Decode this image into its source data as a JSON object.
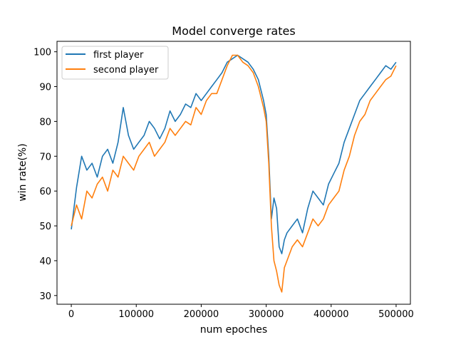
{
  "chart_data": {
    "type": "line",
    "title": "Model converge rates",
    "xlabel": "num epoches",
    "ylabel": "win rate(%)",
    "xlim": [
      -22000,
      522000
    ],
    "ylim": [
      27.5,
      103
    ],
    "xticks": [
      0,
      100000,
      200000,
      300000,
      400000,
      500000
    ],
    "yticks": [
      30,
      40,
      50,
      60,
      70,
      80,
      90,
      100
    ],
    "grid": false,
    "legend_position": "top-left",
    "series": [
      {
        "name": "first player",
        "color": "#1f77b4",
        "x": [
          0,
          8000,
          16000,
          24000,
          32000,
          40000,
          48000,
          56000,
          64000,
          72000,
          80000,
          88000,
          96000,
          104000,
          112000,
          120000,
          128000,
          136000,
          144000,
          152000,
          160000,
          168000,
          176000,
          184000,
          192000,
          200000,
          208000,
          216000,
          224000,
          232000,
          240000,
          248000,
          256000,
          264000,
          272000,
          280000,
          288000,
          296000,
          300000,
          304000,
          308000,
          312000,
          316000,
          320000,
          324000,
          328000,
          332000,
          340000,
          348000,
          356000,
          364000,
          372000,
          380000,
          388000,
          396000,
          404000,
          412000,
          420000,
          428000,
          436000,
          444000,
          452000,
          460000,
          468000,
          476000,
          484000,
          492000,
          500000
        ],
        "y": [
          49,
          61,
          70,
          66,
          68,
          64,
          70,
          72,
          68,
          74,
          84,
          76,
          72,
          74,
          76,
          80,
          78,
          75,
          78,
          83,
          80,
          82,
          85,
          84,
          88,
          86,
          88,
          90,
          92,
          94,
          97,
          98,
          99,
          98,
          97,
          95,
          92,
          86,
          82,
          70,
          52,
          58,
          55,
          44,
          42,
          46,
          48,
          50,
          52,
          48,
          55,
          60,
          58,
          56,
          62,
          65,
          68,
          74,
          78,
          82,
          86,
          88,
          90,
          92,
          94,
          96,
          95,
          97
        ]
      },
      {
        "name": "second player",
        "color": "#ff7f0e",
        "x": [
          0,
          8000,
          16000,
          24000,
          32000,
          40000,
          48000,
          56000,
          64000,
          72000,
          80000,
          88000,
          96000,
          104000,
          112000,
          120000,
          128000,
          136000,
          144000,
          152000,
          160000,
          168000,
          176000,
          184000,
          192000,
          200000,
          208000,
          216000,
          224000,
          232000,
          240000,
          248000,
          256000,
          264000,
          272000,
          280000,
          288000,
          296000,
          300000,
          304000,
          308000,
          312000,
          316000,
          320000,
          324000,
          328000,
          332000,
          340000,
          348000,
          356000,
          364000,
          372000,
          380000,
          388000,
          396000,
          404000,
          412000,
          420000,
          428000,
          436000,
          444000,
          452000,
          460000,
          468000,
          476000,
          484000,
          492000,
          500000
        ],
        "y": [
          50,
          56,
          52,
          60,
          58,
          62,
          64,
          60,
          66,
          64,
          70,
          68,
          66,
          70,
          72,
          74,
          70,
          72,
          74,
          78,
          76,
          78,
          80,
          79,
          84,
          82,
          86,
          88,
          88,
          92,
          96,
          99,
          99,
          97,
          96,
          94,
          90,
          84,
          80,
          68,
          50,
          40,
          37,
          33,
          31,
          38,
          40,
          44,
          46,
          44,
          48,
          52,
          50,
          52,
          56,
          58,
          60,
          66,
          70,
          76,
          80,
          82,
          86,
          88,
          90,
          92,
          93,
          96
        ]
      }
    ]
  }
}
